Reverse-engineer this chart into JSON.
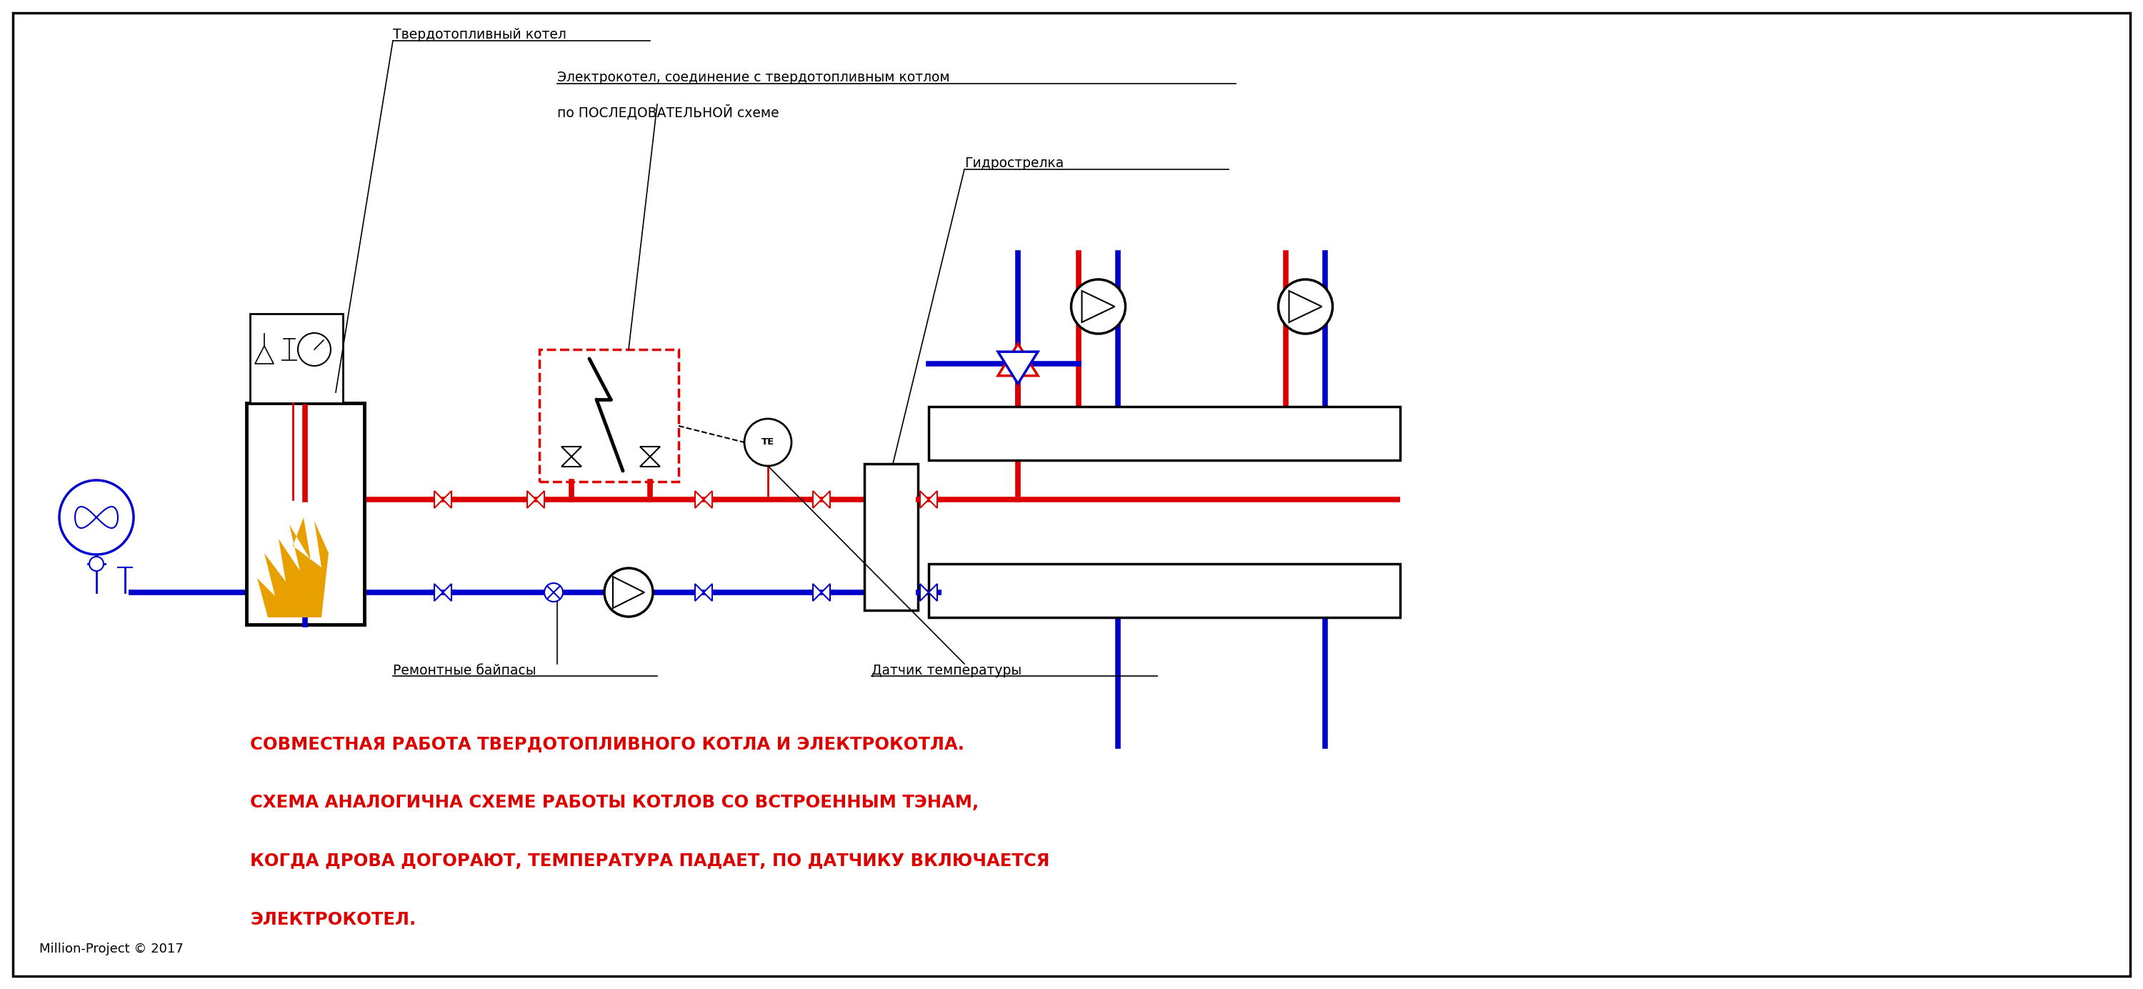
{
  "bg_color": "#ffffff",
  "border_color": "#000000",
  "red": "#dd0000",
  "blue": "#0000cc",
  "black": "#000000",
  "orange": "#e8a000",
  "label_tverd": "Твердотопливный котел",
  "label_electro_line1": "Электрокотел, соединение с твердотопливным котлом",
  "label_electro_line2": "по ПОСЛЕДОВАТЕЛЬНОЙ схеме",
  "label_gidro": "Гидрострелка",
  "label_bypass": "Ремонтные байпасы",
  "label_sensor": "Датчик температуры",
  "text_line1": "СОВМЕСТНАЯ РАБОТА ТВЕРДОТОПЛИВНОГО КОТЛА И ЭЛЕКТРОКОТЛА.",
  "text_line2": "СХЕМА АНАЛОГИЧНА СХЕМЕ РАБОТЫ КОТЛОВ СО ВСТРОЕННЫМ ТЭНАМ,",
  "text_line3": "КОГДА ДРОВА ДОГОРАЮТ, ТЕМПЕРАТУРА ПАДАЕТ, ПО ДАТЧИКУ ВКЛЮЧАЕТСЯ",
  "text_line4": "ЭЛЕКТРОКОТЕЛ.",
  "label_copyright": "Million-Project © 2017"
}
